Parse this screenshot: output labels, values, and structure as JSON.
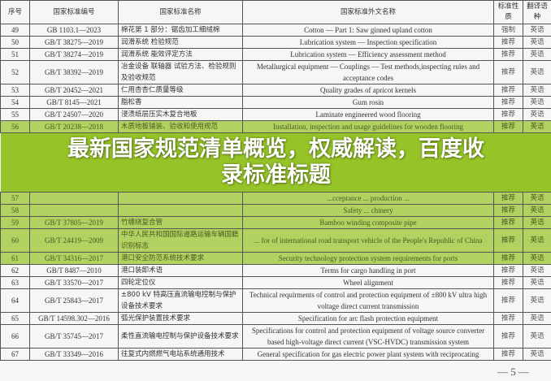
{
  "table": {
    "headers": [
      "序号",
      "国家标准编号",
      "国家标准名称",
      "国家标准外文名称",
      "标准性质",
      "翻译语种"
    ],
    "rows": [
      {
        "no": "49",
        "code": "GB 1103.1—2023",
        "cn": "棉花第 1 部分：锯齿加工细绒棉",
        "en": "Cotton — Part 1: Saw ginned upland cotton",
        "nature": "强制",
        "lang": "英语"
      },
      {
        "no": "50",
        "code": "GB/T 38275—2019",
        "cn": "润滑系统 检验规范",
        "en": "Lubrication system — Inspection specification",
        "nature": "推荐",
        "lang": "英语"
      },
      {
        "no": "51",
        "code": "GB/T 38274—2019",
        "cn": "润滑系统 能效评定方法",
        "en": "Lubrication system — Efficiency assessment method",
        "nature": "推荐",
        "lang": "英语"
      },
      {
        "no": "52",
        "code": "GB/T 38392—2019",
        "cn": "冶金设备 联轴器 试验方法、检验规则及验收规范",
        "en": "Metallurgical equipment — Couplings — Test methods,inspecting rules and acceptance codes",
        "nature": "推荐",
        "lang": "英语",
        "tall": true
      },
      {
        "no": "53",
        "code": "GB/T 20452—2021",
        "cn": "仁用杏杏仁质量等级",
        "en": "Quality grades of apricot kernels",
        "nature": "推荐",
        "lang": "英语"
      },
      {
        "no": "54",
        "code": "GB/T 8145—2021",
        "cn": "脂松香",
        "en": "Gum rosin",
        "nature": "推荐",
        "lang": "英语"
      },
      {
        "no": "55",
        "code": "GB/T 24507—2020",
        "cn": "浸渍纸层压实木复合地板",
        "en": "Laminate engineered wood flooring",
        "nature": "推荐",
        "lang": "英语"
      },
      {
        "no": "56",
        "code": "GB/T 20238—2018",
        "cn": "木质地板铺装、验收和使用规范",
        "en": "Installation, inspection and usage guidelines for wooden flooring",
        "nature": "推荐",
        "lang": "英语"
      },
      {
        "no": "57",
        "code": "",
        "cn": "",
        "en": "...cceptance ... production ...",
        "nature": "推荐",
        "lang": "英语"
      },
      {
        "no": "58",
        "code": "",
        "cn": "",
        "en": "Safety ... chinery",
        "nature": "推荐",
        "lang": "英语"
      },
      {
        "no": "59",
        "code": "GB/T 37805—2019",
        "cn": "竹缠绕复合管",
        "en": "Bamboo winding composite pipe",
        "nature": "推荐",
        "lang": "英语"
      },
      {
        "no": "60",
        "code": "GB/T 24419—2009",
        "cn": "中华人民共和国国际道路运输车辆国籍识别标志",
        "en": "... for of international road transport vehicle of the People's Republic of China",
        "nature": "推荐",
        "lang": "英语",
        "tall": true
      },
      {
        "no": "61",
        "code": "GB/T 34316—2017",
        "cn": "港口安全防范系统技术要求",
        "en": "Security technology protection system requirements for ports",
        "nature": "推荐",
        "lang": "英语"
      },
      {
        "no": "62",
        "code": "GB/T 8487—2010",
        "cn": "港口装卸术语",
        "en": "Terms for cargo handling in port",
        "nature": "推荐",
        "lang": "英语"
      },
      {
        "no": "63",
        "code": "GB/T 33570—2017",
        "cn": "四轮定位仪",
        "en": "Wheel alignment",
        "nature": "推荐",
        "lang": "英语"
      },
      {
        "no": "64",
        "code": "GB/T 25843—2017",
        "cn": "±800 kV 特高压直流输电控制与保护设备技术要求",
        "en": "Technical requirments of control and protection equipment of ±800 kV ultra high voltage direct current transmission",
        "nature": "推荐",
        "lang": "英语",
        "tall": true
      },
      {
        "no": "65",
        "code": "GB/T 14598.302—2016",
        "cn": "弧光保护装置技术要求",
        "en": "Specification for arc flash protection equipment",
        "nature": "推荐",
        "lang": "英语"
      },
      {
        "no": "66",
        "code": "GB/T 35745—2017",
        "cn": "柔性直流输电控制与保护设备技术要求",
        "en": "Specifications for control and protection equipment of voltage source converter based high-voltage direct current (VSC-HVDC) transmission system",
        "nature": "推荐",
        "lang": "英语",
        "tall": true
      },
      {
        "no": "67",
        "code": "GB/T 33349—2016",
        "cn": "往复式内燃燃气电站系统通用技术",
        "en": "General specification for gas electric power plant system with reciprocating",
        "nature": "推荐",
        "lang": "英语"
      }
    ]
  },
  "overlay": {
    "title_line1": "最新国家规范清单概览，权威解读，百度收",
    "title_line2": "录标准标题",
    "band_color": "#96c428"
  },
  "footer": {
    "page_number": "— 5 —"
  }
}
